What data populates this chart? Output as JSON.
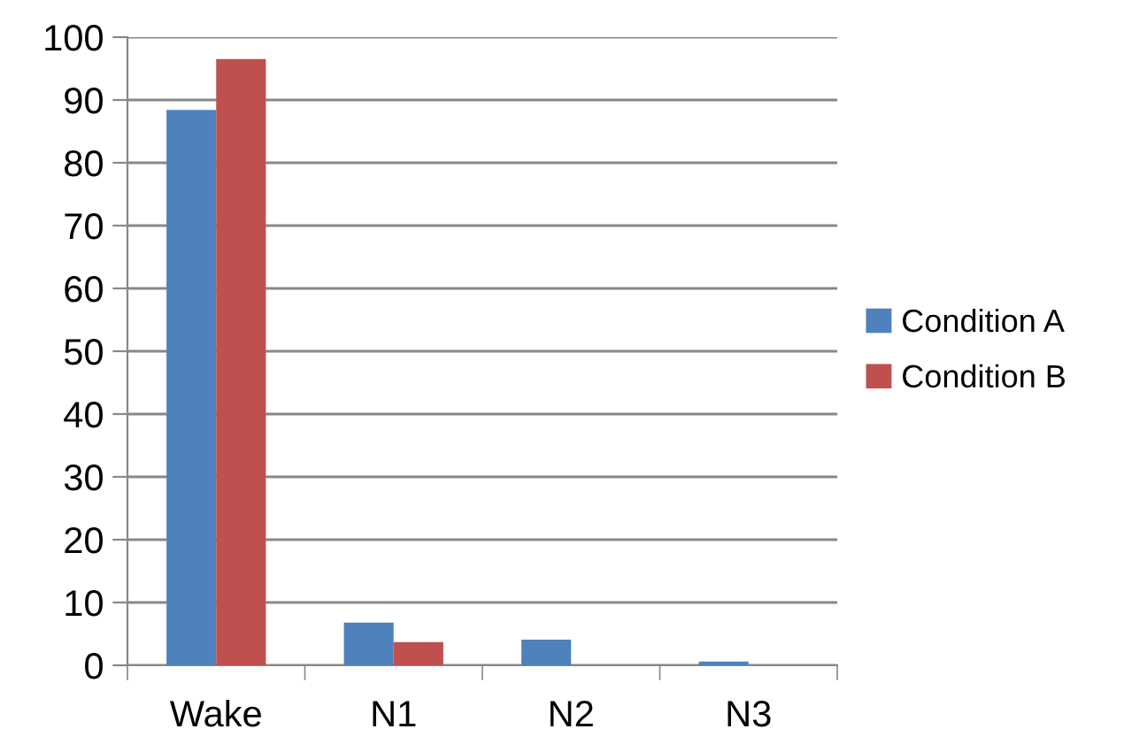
{
  "chart_data": {
    "type": "bar",
    "categories": [
      "Wake",
      "N1",
      "N2",
      "N3"
    ],
    "series": [
      {
        "name": "Condition A",
        "color": "#4f81bd",
        "values": [
          88.4,
          6.8,
          4.1,
          0.6
        ]
      },
      {
        "name": "Condition B",
        "color": "#c0504d",
        "values": [
          96.5,
          3.7,
          0,
          0
        ]
      }
    ],
    "ylim": [
      0,
      100
    ],
    "yticks": [
      0,
      10,
      20,
      30,
      40,
      50,
      60,
      70,
      80,
      90,
      100
    ],
    "grid": "y",
    "legend": "right"
  }
}
